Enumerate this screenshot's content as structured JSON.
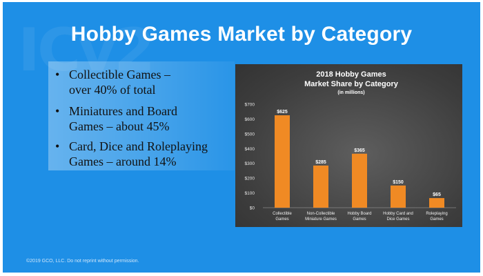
{
  "slide": {
    "title": "Hobby Games Market by Category",
    "footer": "©2019 GCO, LLC. Do not reprint without permission."
  },
  "bullets": [
    {
      "line1": "Collectible Games –",
      "line2": "over 40% of total"
    },
    {
      "line1": "Miniatures and Board",
      "line2": "Games – about 45%"
    },
    {
      "line1": "Card, Dice and Roleplaying",
      "line2": "Games – around 14%"
    }
  ],
  "colors": {
    "background": "#1e8fe6",
    "bar": "#f08a24",
    "chart_panel": "#3d3d3d"
  },
  "chart_data": {
    "type": "bar",
    "title": "2018 Hobby Games",
    "title_line2": "Market Share by Category",
    "subtitle": "(in millions)",
    "categories": [
      [
        "Collectible",
        "Games"
      ],
      [
        "Non-Collectible",
        "Miniature Games"
      ],
      [
        "Hobby Board",
        "Games"
      ],
      [
        "Hobby Card and",
        "Dice Games"
      ],
      [
        "Roleplaying",
        "Games"
      ]
    ],
    "values": [
      625,
      285,
      365,
      150,
      65
    ],
    "data_labels": [
      "$625",
      "$285",
      "$365",
      "$150",
      "$65"
    ],
    "ylim": [
      0,
      700
    ],
    "yticks": [
      0,
      100,
      200,
      300,
      400,
      500,
      600,
      700
    ],
    "ytick_labels": [
      "$0",
      "$100",
      "$200",
      "$300",
      "$400",
      "$500",
      "$600",
      "$700"
    ],
    "grid": false,
    "legend": "none"
  }
}
